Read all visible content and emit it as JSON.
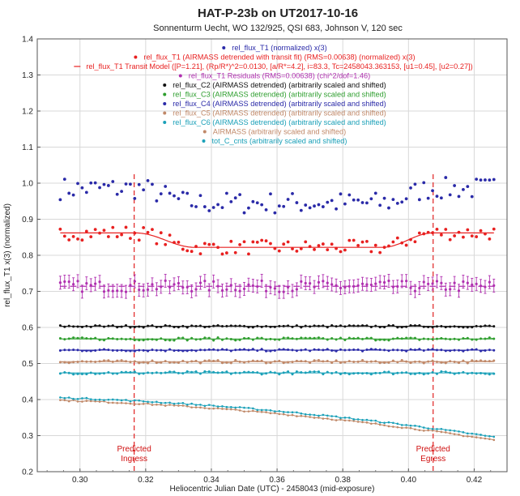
{
  "chart_data": {
    "type": "scatter",
    "title": "HAT-P-23b on UT2017-10-16",
    "subtitle": "Sonnenturm Uecht, WO 132/925, QSI 683, Johnson V, 120 sec",
    "xlabel": "Heliocentric Julian Date (UTC) - 2458043 (mid-exposure)",
    "ylabel": "rel_flux_T1 x(3) (normalized)",
    "xlim": [
      0.287,
      0.43
    ],
    "ylim": [
      0.2,
      1.4
    ],
    "xticks": [
      "0.30",
      "0.32",
      "0.34",
      "0.36",
      "0.38",
      "0.40",
      "0.42"
    ],
    "yticks": [
      "0.2",
      "0.3",
      "0.4",
      "0.5",
      "0.6",
      "0.7",
      "0.8",
      "0.9",
      "1.0",
      "1.1",
      "1.2",
      "1.3",
      "1.4"
    ],
    "grid": true,
    "legend_placement": "top-center",
    "x_range": [
      0.294,
      0.426
    ],
    "n_points": 100,
    "markers": [
      {
        "label_line1": "Predicted",
        "label_line2": "Ingress",
        "x": 0.3165
      },
      {
        "label_line1": "Predicted",
        "label_line2": "Egress",
        "x": 0.4075
      }
    ],
    "transit": {
      "baseline": 0.862,
      "depth": 0.04,
      "ingress_start": 0.317,
      "ingress_end": 0.335,
      "egress_start": 0.392,
      "egress_end": 0.4075
    },
    "series": [
      {
        "name": "rel_flux_T1 (normalized) x(3)",
        "color": "#2a2aa8",
        "style": "dots",
        "base": 0.985,
        "scatter": 0.028,
        "transit_scale": 1.0
      },
      {
        "name": "rel_flux_T1 (AIRMASS detrended with transit fit) (RMS=0.00638) (normalized) x(3)",
        "color": "#e82020",
        "style": "dots",
        "base": 0.862,
        "scatter": 0.018,
        "transit_scale": 1.0
      },
      {
        "name": "rel_flux_T1 Transit Model ([P=1.21], (Rp/R*)^2=0.0130, [a/R*=4.2], i=83.3, Tc=2458043.363153, [u1=0.45], [u2=0.27])",
        "color": "#e82020",
        "style": "model"
      },
      {
        "name": "rel_flux_T1 Residuals (RMS=0.00638) (chi^2/dof=1.46)",
        "color": "#b030b0",
        "style": "errorbars",
        "base": 0.714,
        "scatter": 0.013,
        "err": 0.018
      },
      {
        "name": "rel_flux_C2 (AIRMASS detrended) (arbitrarily scaled and shifted)",
        "color": "#111111",
        "style": "connected",
        "base": 0.603,
        "scatter": 0.003
      },
      {
        "name": "rel_flux_C3 (AIRMASS detrended) (arbitrarily scaled and shifted)",
        "color": "#2e9e2e",
        "style": "connected",
        "base": 0.568,
        "scatter": 0.004
      },
      {
        "name": "rel_flux_C4 (AIRMASS detrended) (arbitrarily scaled and shifted)",
        "color": "#2a2aa8",
        "style": "connected",
        "base": 0.537,
        "scatter": 0.003
      },
      {
        "name": "rel_flux_C5 (AIRMASS detrended) (arbitrarily scaled and shifted)",
        "color": "#c08868",
        "style": "connected",
        "base": 0.505,
        "scatter": 0.004
      },
      {
        "name": "rel_flux_C6 (AIRMASS detrended) (arbitrarily scaled and shifted)",
        "color": "#1aa0b8",
        "style": "connected",
        "base": 0.474,
        "scatter": 0.004
      },
      {
        "name": "AIRMASS (arbitrarily scaled and shifted)",
        "color": "#c08868",
        "style": "curve",
        "y_start": 0.398,
        "y_end": 0.288
      },
      {
        "name": "tot_C_cnts (arbitrarily scaled and shifted)",
        "color": "#1aa0b8",
        "style": "curve",
        "y_start": 0.405,
        "y_end": 0.296
      }
    ]
  }
}
